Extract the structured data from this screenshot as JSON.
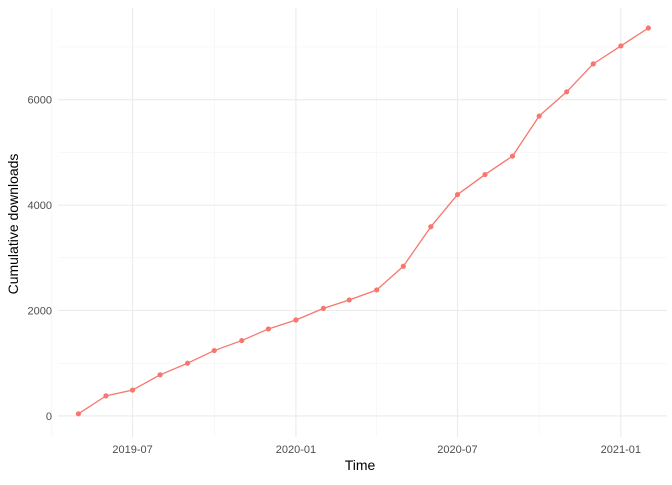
{
  "chart_data": {
    "type": "line",
    "title": "",
    "xlabel": "Time",
    "ylabel": "Cumulative downloads",
    "x_type": "date",
    "xlim": [
      "2019-04-08",
      "2021-02-22"
    ],
    "ylim": [
      -400,
      7740
    ],
    "x_ticks": [
      {
        "date": "2019-07-01",
        "label": "2019-07"
      },
      {
        "date": "2020-01-01",
        "label": "2020-01"
      },
      {
        "date": "2020-07-01",
        "label": "2020-07"
      },
      {
        "date": "2021-01-01",
        "label": "2021-01"
      }
    ],
    "x_minor_ticks": [
      "2019-04-01",
      "2019-10-01",
      "2020-04-01",
      "2020-10-01"
    ],
    "y_ticks": [
      0,
      2000,
      4000,
      6000
    ],
    "y_minor_ticks": [
      1000,
      3000,
      5000,
      7000
    ],
    "grid": true,
    "legend": "none",
    "colors": {
      "line": "#F8766D",
      "point": "#F8766D"
    },
    "series": [
      {
        "x": [
          "2019-05-01",
          "2019-06-01",
          "2019-07-01",
          "2019-08-01",
          "2019-09-01",
          "2019-10-01",
          "2019-11-01",
          "2019-12-01",
          "2020-01-01",
          "2020-02-01",
          "2020-03-01",
          "2020-04-01",
          "2020-05-01",
          "2020-06-01",
          "2020-07-01",
          "2020-08-01",
          "2020-09-01",
          "2020-10-01",
          "2020-11-01",
          "2020-12-01",
          "2021-01-01",
          "2021-02-01"
        ],
        "y": [
          40,
          380,
          490,
          780,
          1000,
          1240,
          1430,
          1650,
          1820,
          2040,
          2200,
          2390,
          2840,
          3590,
          4200,
          4580,
          4930,
          5690,
          6150,
          6680,
          7020,
          7360
        ]
      }
    ]
  }
}
